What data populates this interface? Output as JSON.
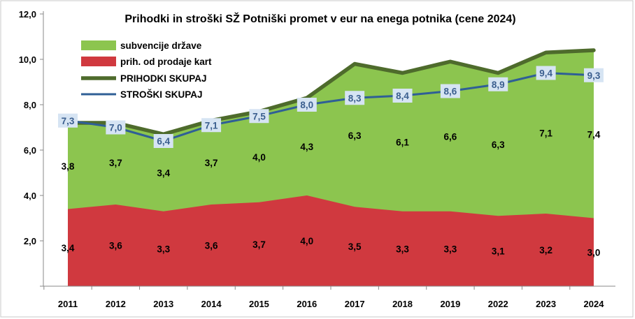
{
  "chart_data": {
    "type": "area",
    "title": "Prihodki in stroški SŽ Potniški promet v eur na enega potnika (cene 2024)",
    "categories": [
      "2011",
      "2012",
      "2013",
      "2014",
      "2015",
      "2016",
      "2017",
      "2018",
      "2019",
      "2022",
      "2023",
      "2024"
    ],
    "ylim": [
      0,
      12
    ],
    "yticks": [
      "2,0",
      "4,0",
      "6,0",
      "8,0",
      "10,0",
      "12,0"
    ],
    "ytick_values": [
      2,
      4,
      6,
      8,
      10,
      12
    ],
    "xlabel": "",
    "ylabel": "",
    "legend_position": "top-left",
    "series": [
      {
        "name": "subvencije države",
        "kind": "stacked-area",
        "color": "#8cc54f",
        "values": [
          3.8,
          3.7,
          3.4,
          3.7,
          4.0,
          4.3,
          6.3,
          6.1,
          6.6,
          6.3,
          7.1,
          7.4
        ],
        "labels": [
          "3,8",
          "3,7",
          "3,4",
          "3,7",
          "4,0",
          "4,3",
          "6,3",
          "6,1",
          "6,6",
          "6,3",
          "7,1",
          "7,4"
        ]
      },
      {
        "name": "prih. od prodaje kart",
        "kind": "stacked-area",
        "color": "#d0393f",
        "values": [
          3.4,
          3.6,
          3.3,
          3.6,
          3.7,
          4.0,
          3.5,
          3.3,
          3.3,
          3.1,
          3.2,
          3.0
        ],
        "labels": [
          "3,4",
          "3,6",
          "3,3",
          "3,6",
          "3,7",
          "4,0",
          "3,5",
          "3,3",
          "3,3",
          "3,1",
          "3,2",
          "3,0"
        ]
      },
      {
        "name": "PRIHODKI SKUPAJ",
        "kind": "line",
        "color": "#4e6b2c",
        "values": [
          7.2,
          7.2,
          6.7,
          7.3,
          7.7,
          8.3,
          9.8,
          9.4,
          9.9,
          9.4,
          10.3,
          10.4
        ]
      },
      {
        "name": "STROŠKI SKUPAJ",
        "kind": "line",
        "color": "#2f5f96",
        "values": [
          7.3,
          7.0,
          6.4,
          7.1,
          7.5,
          8.0,
          8.3,
          8.4,
          8.6,
          8.9,
          9.4,
          9.3
        ],
        "labels": [
          "7,3",
          "7,0",
          "6,4",
          "7,1",
          "7,5",
          "8,0",
          "8,3",
          "8,4",
          "8,6",
          "8,9",
          "9,4",
          "9,3"
        ]
      }
    ]
  }
}
